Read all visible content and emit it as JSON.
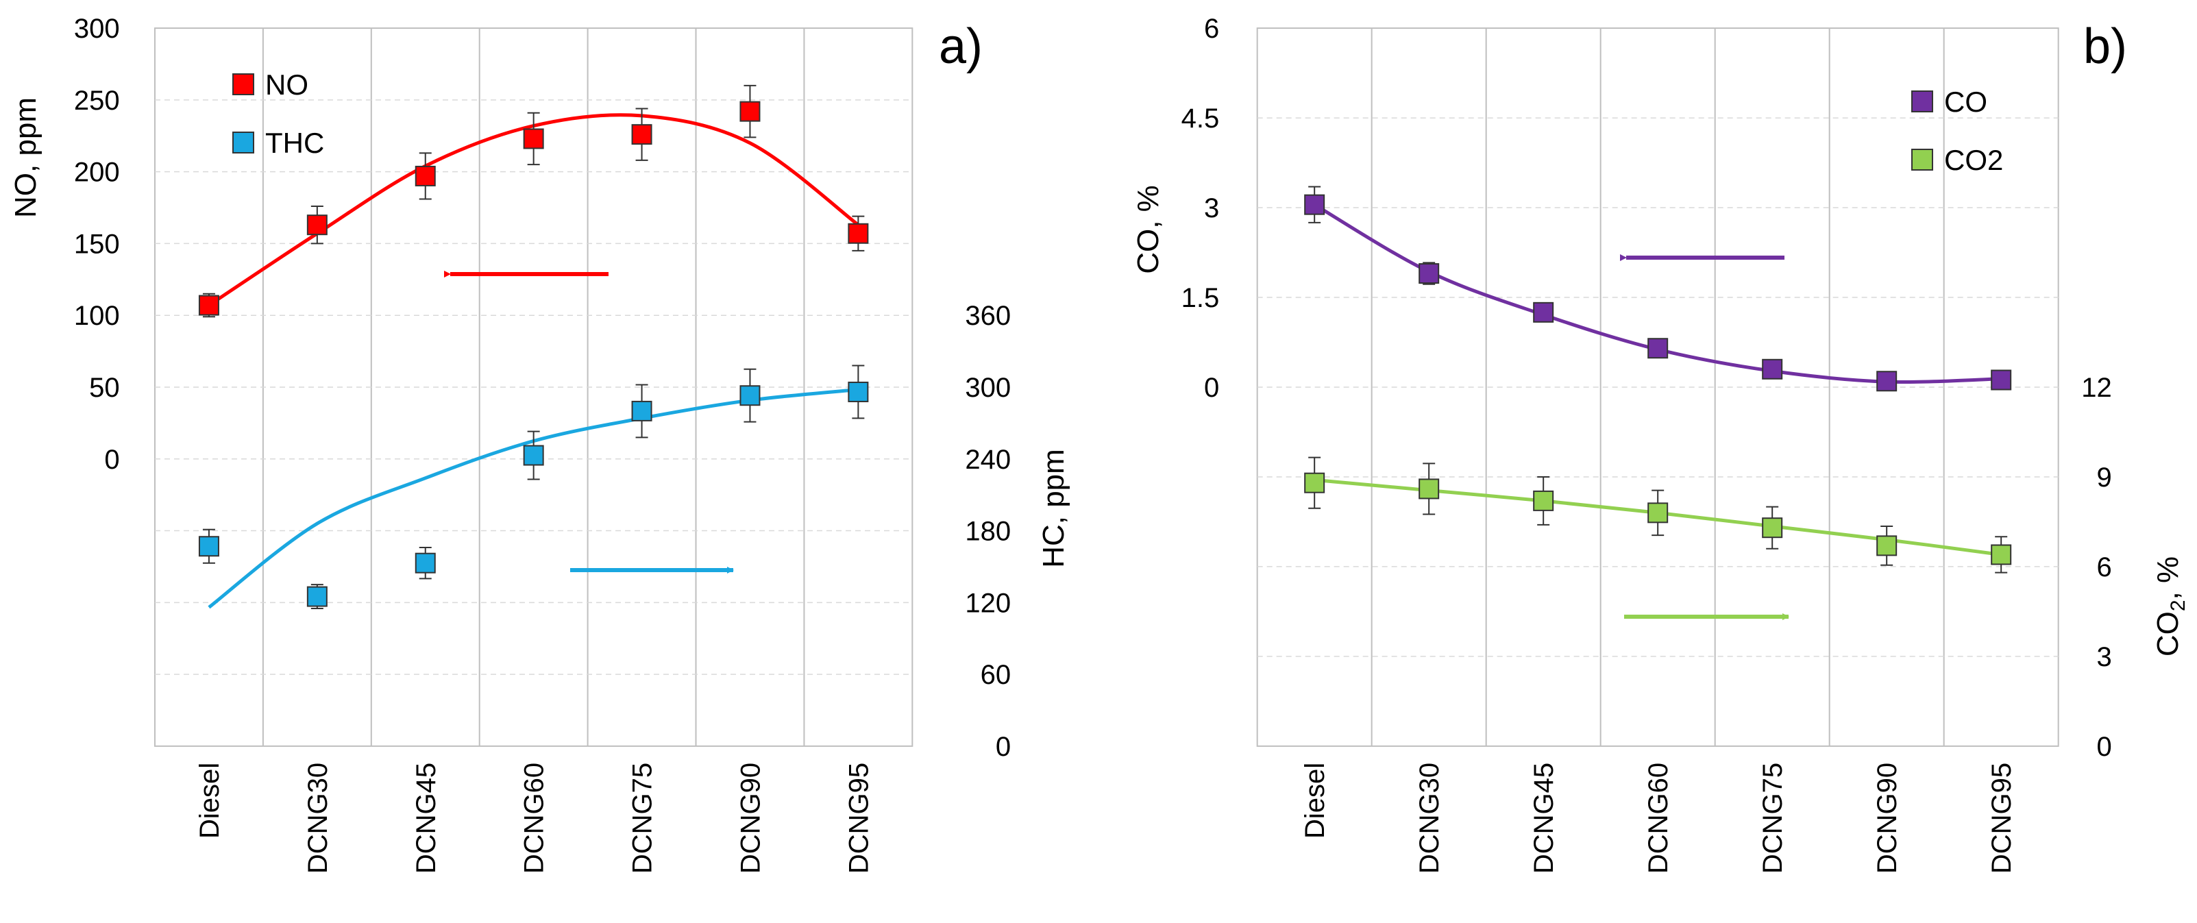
{
  "chart_data": [
    {
      "type": "scatter",
      "panel_label": "a)",
      "categories": [
        "Diesel",
        "DCNG30",
        "DCNG45",
        "DCNG60",
        "DCNG75",
        "DCNG90",
        "DCNG95"
      ],
      "left_axis": {
        "label": "NO, ppm",
        "ticks": [
          "300",
          "250",
          "200",
          "150",
          "100",
          "50",
          "0"
        ],
        "range": [
          -200,
          300
        ]
      },
      "right_axis": {
        "label": "HC, ppm",
        "ticks": [
          "360",
          "300",
          "240",
          "180",
          "120",
          "60",
          "0"
        ],
        "range": [
          0,
          600
        ]
      },
      "grid": true,
      "legend_position": "top-left",
      "series": [
        {
          "name": "NO",
          "axis": "left",
          "color": "#ff0000",
          "values": [
            107,
            163,
            197,
            223,
            226,
            242,
            157
          ],
          "errors": [
            8,
            13,
            16,
            18,
            18,
            18,
            12
          ],
          "trend": [
            107,
            157,
            204,
            232,
            239,
            220,
            163
          ]
        },
        {
          "name": "THC",
          "axis": "right",
          "color": "#1aa7e0",
          "values": [
            167,
            125,
            153,
            243,
            280,
            293,
            296
          ],
          "errors": [
            14,
            10,
            13,
            20,
            22,
            22,
            22
          ],
          "trend": [
            116,
            186,
            224,
            255,
            274,
            289,
            298
          ]
        }
      ]
    },
    {
      "type": "scatter",
      "panel_label": "b)",
      "categories": [
        "Diesel",
        "DCNG30",
        "DCNG45",
        "DCNG60",
        "DCNG75",
        "DCNG90",
        "DCNG95"
      ],
      "left_axis": {
        "label": "CO, %",
        "ticks": [
          "6",
          "4.5",
          "3",
          "1.5",
          "0"
        ],
        "range": [
          -6,
          6
        ]
      },
      "right_axis": {
        "label": "CO₂, %",
        "label_base": "CO",
        "label_sub": "2",
        "label_suffix": ", %",
        "ticks": [
          "12",
          "9",
          "6",
          "3",
          "0"
        ],
        "range": [
          0,
          24
        ]
      },
      "grid": true,
      "legend_position": "top-right",
      "series": [
        {
          "name": "CO",
          "axis": "left",
          "color": "#7030a0",
          "values": [
            3.05,
            1.9,
            1.25,
            0.65,
            0.3,
            0.1,
            0.12
          ],
          "errors": [
            0.3,
            0.18,
            0.08,
            0.06,
            0.05,
            0.04,
            0.04
          ],
          "trend": [
            3.05,
            1.93,
            1.21,
            0.63,
            0.27,
            0.09,
            0.14
          ]
        },
        {
          "name": "CO2",
          "axis": "right",
          "color": "#92d050",
          "values": [
            8.8,
            8.6,
            8.2,
            7.8,
            7.3,
            6.7,
            6.4
          ],
          "errors": [
            0.85,
            0.85,
            0.8,
            0.75,
            0.7,
            0.65,
            0.6
          ],
          "trend": [
            8.9,
            8.55,
            8.2,
            7.8,
            7.35,
            6.9,
            6.4
          ]
        }
      ]
    }
  ]
}
